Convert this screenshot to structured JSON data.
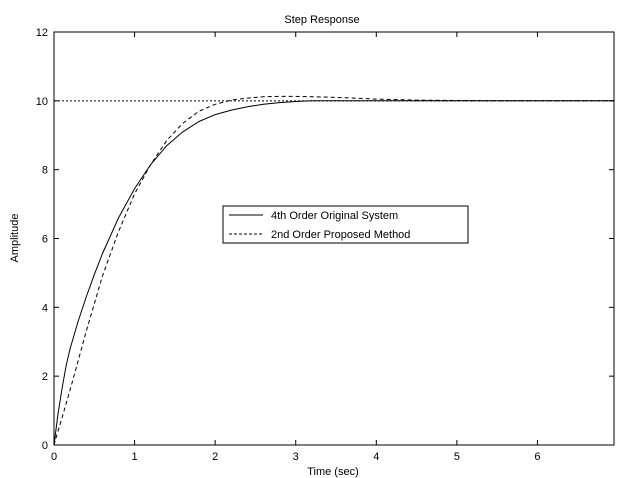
{
  "chart_data": {
    "type": "line",
    "title": "Step Response",
    "xlabel": "Time (sec)",
    "ylabel": "Amplitude",
    "xlim": [
      0,
      6.95
    ],
    "ylim": [
      0,
      12
    ],
    "xticks": [
      0,
      1,
      2,
      3,
      4,
      5,
      6
    ],
    "yticks": [
      0,
      2,
      4,
      6,
      8,
      10,
      12
    ],
    "grid": false,
    "legend_position": "center",
    "reference_lines": [
      {
        "axis": "y",
        "value": 10,
        "style": "dotted"
      }
    ],
    "series": [
      {
        "name": "4th Order Original System",
        "style": "solid",
        "color": "#000000",
        "x": [
          0,
          0.05,
          0.1,
          0.15,
          0.2,
          0.3,
          0.4,
          0.5,
          0.6,
          0.8,
          1.0,
          1.2,
          1.4,
          1.6,
          1.8,
          2.0,
          2.2,
          2.4,
          2.6,
          2.8,
          3.0,
          3.2,
          3.5,
          4.0,
          4.5,
          5.0,
          6.0,
          6.95
        ],
        "y": [
          0,
          0.9,
          1.65,
          2.3,
          2.8,
          3.6,
          4.3,
          4.95,
          5.55,
          6.6,
          7.45,
          8.15,
          8.7,
          9.1,
          9.4,
          9.6,
          9.73,
          9.83,
          9.9,
          9.95,
          9.98,
          10.0,
          10.0,
          10.0,
          10.0,
          10.0,
          10.0,
          10.0
        ]
      },
      {
        "name": "2nd Order Proposed Method",
        "style": "dashed",
        "color": "#000000",
        "x": [
          0,
          0.05,
          0.1,
          0.2,
          0.3,
          0.4,
          0.5,
          0.6,
          0.8,
          1.0,
          1.2,
          1.4,
          1.6,
          1.8,
          2.0,
          2.2,
          2.4,
          2.6,
          2.8,
          3.0,
          3.2,
          3.5,
          3.8,
          4.0,
          4.5,
          5.0,
          5.5,
          6.0,
          6.95
        ],
        "y": [
          0,
          0.4,
          0.8,
          1.6,
          2.45,
          3.3,
          4.1,
          4.9,
          6.2,
          7.3,
          8.15,
          8.85,
          9.35,
          9.7,
          9.9,
          10.02,
          10.08,
          10.12,
          10.13,
          10.13,
          10.12,
          10.1,
          10.07,
          10.05,
          10.02,
          10.01,
          10.0,
          10.0,
          10.0
        ]
      }
    ]
  }
}
